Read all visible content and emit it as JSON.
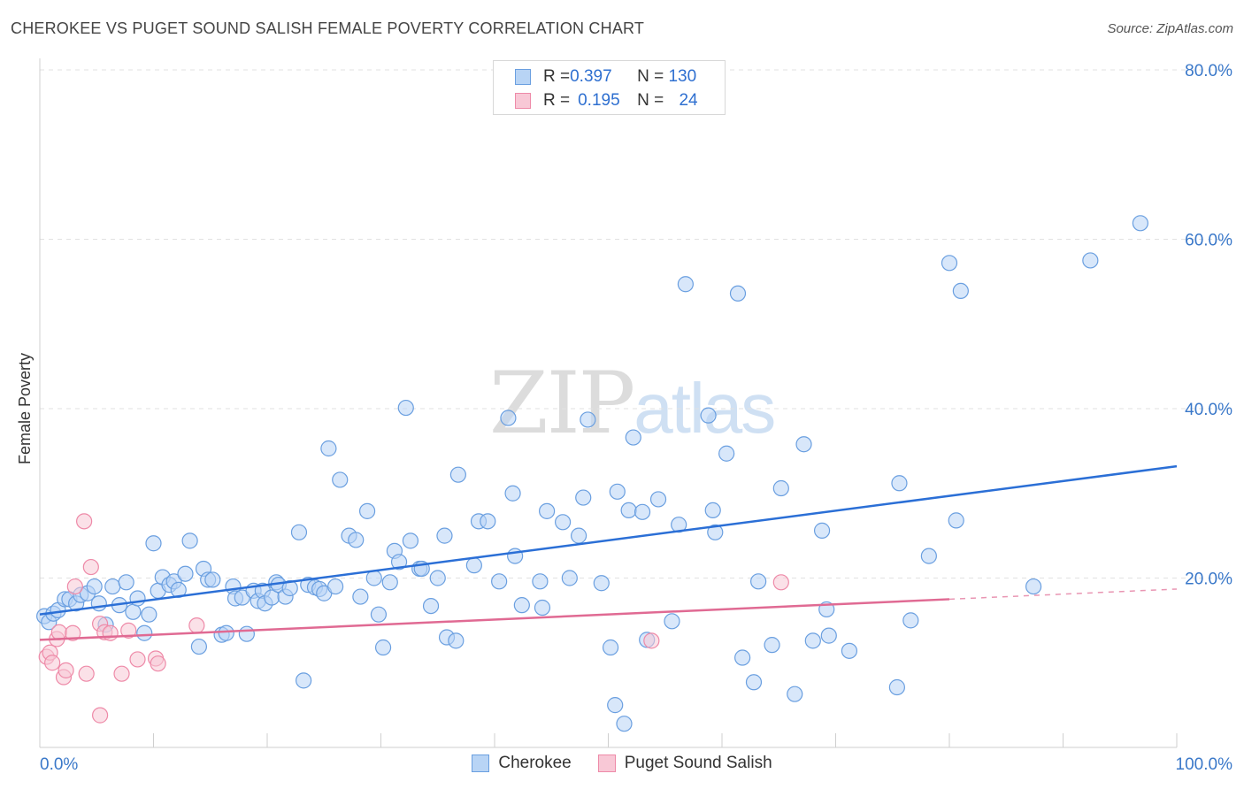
{
  "header": {
    "title": "CHEROKEE VS PUGET SOUND SALISH FEMALE POVERTY CORRELATION CHART",
    "source": "Source: ZipAtlas.com"
  },
  "watermark": {
    "zip": "ZIP",
    "atlas": "atlas"
  },
  "legend_top": {
    "rows": [
      {
        "r_label": "R = ",
        "r_value": "0.397",
        "n_label": "N = ",
        "n_value": "130"
      },
      {
        "r_label": "R = ",
        "r_value": "0.195",
        "n_label": "N = ",
        "n_value": "24"
      }
    ]
  },
  "colors": {
    "cherokee_fill": "#b8d4f5",
    "cherokee_stroke": "#6a9fe0",
    "cherokee_line": "#2b6fd6",
    "puget_fill": "#f8c8d6",
    "puget_stroke": "#ee8aa8",
    "puget_line": "#e06a93",
    "tick_text": "#3a78c9"
  },
  "chart_data": {
    "type": "scatter",
    "title": "CHEROKEE VS PUGET SOUND SALISH FEMALE POVERTY CORRELATION CHART",
    "xlabel": "",
    "ylabel": "Female Poverty",
    "xlim": [
      0,
      100
    ],
    "ylim": [
      0,
      80
    ],
    "x_tick_labels": [
      "0.0%",
      "100.0%"
    ],
    "y_ticks": [
      20,
      40,
      60,
      80
    ],
    "y_tick_labels": [
      "20.0%",
      "40.0%",
      "60.0%",
      "80.0%"
    ],
    "grid": "horizontal dashed",
    "legend_position": "bottom",
    "series": [
      {
        "name": "Cherokee",
        "r": 0.397,
        "n": 130,
        "trend": {
          "x": [
            0,
            100
          ],
          "y": [
            15.7,
            33.2
          ]
        },
        "points": [
          [
            0.4,
            15.5
          ],
          [
            0.8,
            14.8
          ],
          [
            1.2,
            15.8
          ],
          [
            1.6,
            16.2
          ],
          [
            2.2,
            17.5
          ],
          [
            2.6,
            17.5
          ],
          [
            3.2,
            17.0
          ],
          [
            3.6,
            18.0
          ],
          [
            4.2,
            18.2
          ],
          [
            4.8,
            19.0
          ],
          [
            5.2,
            17.0
          ],
          [
            5.8,
            14.5
          ],
          [
            6.4,
            19.0
          ],
          [
            7.0,
            16.8
          ],
          [
            7.6,
            19.5
          ],
          [
            8.2,
            16.0
          ],
          [
            8.6,
            17.6
          ],
          [
            9.2,
            13.5
          ],
          [
            9.6,
            15.7
          ],
          [
            10.0,
            24.1
          ],
          [
            10.4,
            18.5
          ],
          [
            10.8,
            20.1
          ],
          [
            11.4,
            19.2
          ],
          [
            11.8,
            19.6
          ],
          [
            12.2,
            18.6
          ],
          [
            12.8,
            20.5
          ],
          [
            13.2,
            24.4
          ],
          [
            14.0,
            11.9
          ],
          [
            14.4,
            21.1
          ],
          [
            14.8,
            19.8
          ],
          [
            15.2,
            19.8
          ],
          [
            16.0,
            13.3
          ],
          [
            16.4,
            13.5
          ],
          [
            17.0,
            19.0
          ],
          [
            17.2,
            17.6
          ],
          [
            17.8,
            17.7
          ],
          [
            18.2,
            13.4
          ],
          [
            18.8,
            18.5
          ],
          [
            19.2,
            17.3
          ],
          [
            19.6,
            18.5
          ],
          [
            19.8,
            17.0
          ],
          [
            20.4,
            17.7
          ],
          [
            20.8,
            19.5
          ],
          [
            21.0,
            19.2
          ],
          [
            21.6,
            17.8
          ],
          [
            22.0,
            18.8
          ],
          [
            22.8,
            25.4
          ],
          [
            23.2,
            7.9
          ],
          [
            23.6,
            19.2
          ],
          [
            24.2,
            18.9
          ],
          [
            24.6,
            18.7
          ],
          [
            25.0,
            18.2
          ],
          [
            25.4,
            35.3
          ],
          [
            26.0,
            19.0
          ],
          [
            26.4,
            31.6
          ],
          [
            27.2,
            25.0
          ],
          [
            27.8,
            24.5
          ],
          [
            28.2,
            17.8
          ],
          [
            28.8,
            27.9
          ],
          [
            29.4,
            20.0
          ],
          [
            29.8,
            15.7
          ],
          [
            30.2,
            11.8
          ],
          [
            30.8,
            19.5
          ],
          [
            31.2,
            23.2
          ],
          [
            31.6,
            21.9
          ],
          [
            32.2,
            40.1
          ],
          [
            32.6,
            24.4
          ],
          [
            33.4,
            21.1
          ],
          [
            33.6,
            21.1
          ],
          [
            34.4,
            16.7
          ],
          [
            35.0,
            20.0
          ],
          [
            35.6,
            25.0
          ],
          [
            35.8,
            13.0
          ],
          [
            36.6,
            12.6
          ],
          [
            36.8,
            32.2
          ],
          [
            38.2,
            21.5
          ],
          [
            38.6,
            26.7
          ],
          [
            39.4,
            26.7
          ],
          [
            40.4,
            19.6
          ],
          [
            41.2,
            38.9
          ],
          [
            41.6,
            30.0
          ],
          [
            41.8,
            22.6
          ],
          [
            42.4,
            16.8
          ],
          [
            44.0,
            19.6
          ],
          [
            44.2,
            16.5
          ],
          [
            44.6,
            27.9
          ],
          [
            46.0,
            26.6
          ],
          [
            46.6,
            20.0
          ],
          [
            47.4,
            25.0
          ],
          [
            47.8,
            29.5
          ],
          [
            48.2,
            38.7
          ],
          [
            49.4,
            19.4
          ],
          [
            50.2,
            11.8
          ],
          [
            50.6,
            5.0
          ],
          [
            50.8,
            30.2
          ],
          [
            51.4,
            2.8
          ],
          [
            51.8,
            28.0
          ],
          [
            52.2,
            36.6
          ],
          [
            53.0,
            27.8
          ],
          [
            53.4,
            12.7
          ],
          [
            54.4,
            29.3
          ],
          [
            55.6,
            14.9
          ],
          [
            56.2,
            26.3
          ],
          [
            56.8,
            54.7
          ],
          [
            58.8,
            39.2
          ],
          [
            59.2,
            28.0
          ],
          [
            59.4,
            25.4
          ],
          [
            60.4,
            34.7
          ],
          [
            61.4,
            53.6
          ],
          [
            61.8,
            10.6
          ],
          [
            62.8,
            7.7
          ],
          [
            63.2,
            19.6
          ],
          [
            64.4,
            12.1
          ],
          [
            65.2,
            30.6
          ],
          [
            66.4,
            6.3
          ],
          [
            67.2,
            35.8
          ],
          [
            68.0,
            12.6
          ],
          [
            68.8,
            25.6
          ],
          [
            69.2,
            16.3
          ],
          [
            69.4,
            13.2
          ],
          [
            71.2,
            11.4
          ],
          [
            75.4,
            7.1
          ],
          [
            75.6,
            31.2
          ],
          [
            76.6,
            15.0
          ],
          [
            78.2,
            22.6
          ],
          [
            80.0,
            57.2
          ],
          [
            80.6,
            26.8
          ],
          [
            81.0,
            53.9
          ],
          [
            87.4,
            19.0
          ],
          [
            92.4,
            57.5
          ],
          [
            96.8,
            61.9
          ]
        ]
      },
      {
        "name": "Puget Sound Salish",
        "r": 0.195,
        "n": 24,
        "trend": {
          "x": [
            0,
            80
          ],
          "y": [
            12.7,
            17.5
          ]
        },
        "trend_dashed": {
          "x": [
            80,
            100
          ],
          "y": [
            17.5,
            18.7
          ]
        },
        "points": [
          [
            0.6,
            10.7
          ],
          [
            0.9,
            11.2
          ],
          [
            1.1,
            10.0
          ],
          [
            1.5,
            12.8
          ],
          [
            1.7,
            13.6
          ],
          [
            2.1,
            8.3
          ],
          [
            2.3,
            9.1
          ],
          [
            2.9,
            13.5
          ],
          [
            3.1,
            19.0
          ],
          [
            3.9,
            26.7
          ],
          [
            4.1,
            8.7
          ],
          [
            4.5,
            21.3
          ],
          [
            5.3,
            14.6
          ],
          [
            5.7,
            13.6
          ],
          [
            6.2,
            13.5
          ],
          [
            7.2,
            8.7
          ],
          [
            7.8,
            13.8
          ],
          [
            8.6,
            10.4
          ],
          [
            10.2,
            10.5
          ],
          [
            10.4,
            9.9
          ],
          [
            13.8,
            14.4
          ],
          [
            5.3,
            3.8
          ],
          [
            53.8,
            12.6
          ],
          [
            65.2,
            19.5
          ]
        ]
      }
    ]
  },
  "bottom_legend": {
    "items": [
      {
        "label": "Cherokee"
      },
      {
        "label": "Puget Sound Salish"
      }
    ]
  }
}
